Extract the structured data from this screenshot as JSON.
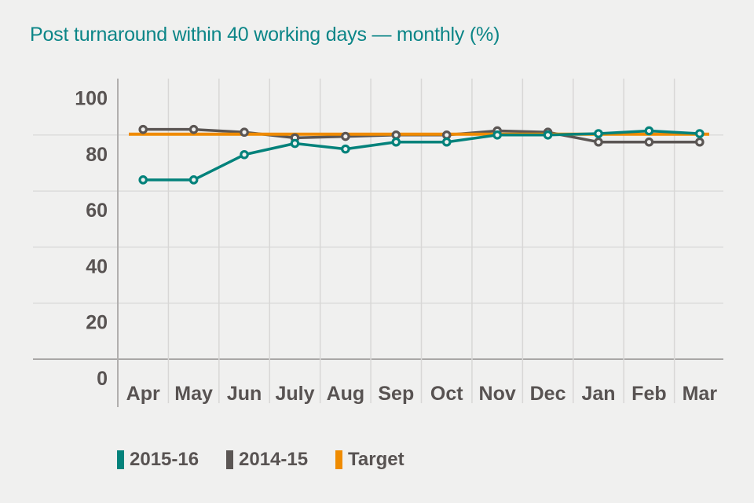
{
  "chart_data": {
    "type": "line",
    "title": "Post turnaround within 40 working days — monthly (%)",
    "title_color": "#0b8587",
    "categories": [
      "Apr",
      "May",
      "Jun",
      "July",
      "Aug",
      "Sep",
      "Oct",
      "Nov",
      "Dec",
      "Jan",
      "Feb",
      "Mar"
    ],
    "series": [
      {
        "name": "2015-16",
        "color": "#03827b",
        "values": [
          64,
          64,
          73,
          77,
          75,
          77.5,
          77.5,
          80,
          80,
          80.5,
          81.5,
          80.5
        ]
      },
      {
        "name": "2014-15",
        "color": "#5b5654",
        "values": [
          82,
          82,
          81,
          79,
          79.5,
          80,
          80,
          81.5,
          81,
          77.5,
          77.5,
          77.5
        ]
      }
    ],
    "target": {
      "name": "Target",
      "color": "#ef8b00",
      "value": 80
    },
    "yticks": [
      100,
      80,
      60,
      40,
      20,
      0
    ],
    "ylim": [
      0,
      100
    ],
    "grid": true,
    "legend_position": "bottom",
    "background": "#f0f0ef",
    "axis_text_color": "#585352",
    "gridline_color": "#dcdcdb",
    "separator_color": "#d8d7d6",
    "zero_line_color": "#a9a7a6",
    "y_axis_line_color": "#b1afae"
  }
}
